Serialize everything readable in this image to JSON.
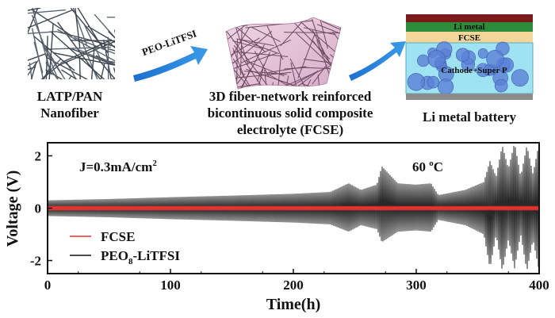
{
  "schematic": {
    "step1": {
      "line1": "LATP/PAN",
      "line2": "Nanofiber"
    },
    "arrow1_label": "PEO-LiTFSI",
    "step2": {
      "line1": "3D fiber-network reinforced",
      "line2": "bicontinuous solid composite",
      "line3": "electrolyte (FCSE)"
    },
    "step3": {
      "caption": "Li metal battery",
      "layer_top": "Li metal",
      "layer_mid": "FCSE",
      "layer_bottom": "Cathode+Super P"
    }
  },
  "chart_data": {
    "type": "line",
    "xlabel": "Time(h)",
    "ylabel": "Voltage (V)",
    "xlim": [
      0,
      400
    ],
    "ylim": [
      -2.5,
      2.5
    ],
    "xticks": [
      0,
      100,
      200,
      300,
      400
    ],
    "yticks": [
      2,
      0,
      -2
    ],
    "annotation_current": {
      "prefix": "J=0.3mA/cm",
      "sup": "2"
    },
    "annotation_temp": {
      "value": "60 ",
      "sup": "o",
      "unit": "C"
    },
    "legend": {
      "placement": "bottom-left"
    },
    "series": [
      {
        "name": "FCSE",
        "color": "#e8312f",
        "envelope": {
          "t": [
            0,
            400
          ],
          "upper": [
            0.08,
            0.08
          ],
          "lower": [
            -0.08,
            -0.08
          ]
        }
      },
      {
        "name_prefix": "PEO",
        "name_sub": "8",
        "name_suffix": "-LiTFSI",
        "color": "#111111",
        "envelope": {
          "t": [
            0,
            50,
            100,
            150,
            200,
            230,
            245,
            255,
            268,
            272,
            285,
            300,
            312,
            318,
            340,
            355,
            360,
            365,
            370,
            375,
            380,
            385,
            390,
            395,
            400
          ],
          "upper": [
            0.3,
            0.35,
            0.42,
            0.48,
            0.55,
            0.62,
            0.95,
            0.7,
            0.9,
            1.6,
            0.95,
            0.9,
            0.95,
            0.5,
            0.7,
            1.0,
            1.8,
            1.2,
            2.4,
            1.5,
            2.5,
            1.2,
            2.4,
            1.3,
            2.5
          ],
          "lower": [
            -0.3,
            -0.35,
            -0.42,
            -0.48,
            -0.55,
            -0.62,
            -0.9,
            -0.65,
            -0.8,
            -1.3,
            -0.9,
            -0.85,
            -0.9,
            -0.45,
            -0.65,
            -1.0,
            -2.3,
            -1.0,
            -2.4,
            -1.2,
            -2.3,
            -1.0,
            -2.4,
            -1.2,
            -2.4
          ]
        }
      }
    ]
  }
}
